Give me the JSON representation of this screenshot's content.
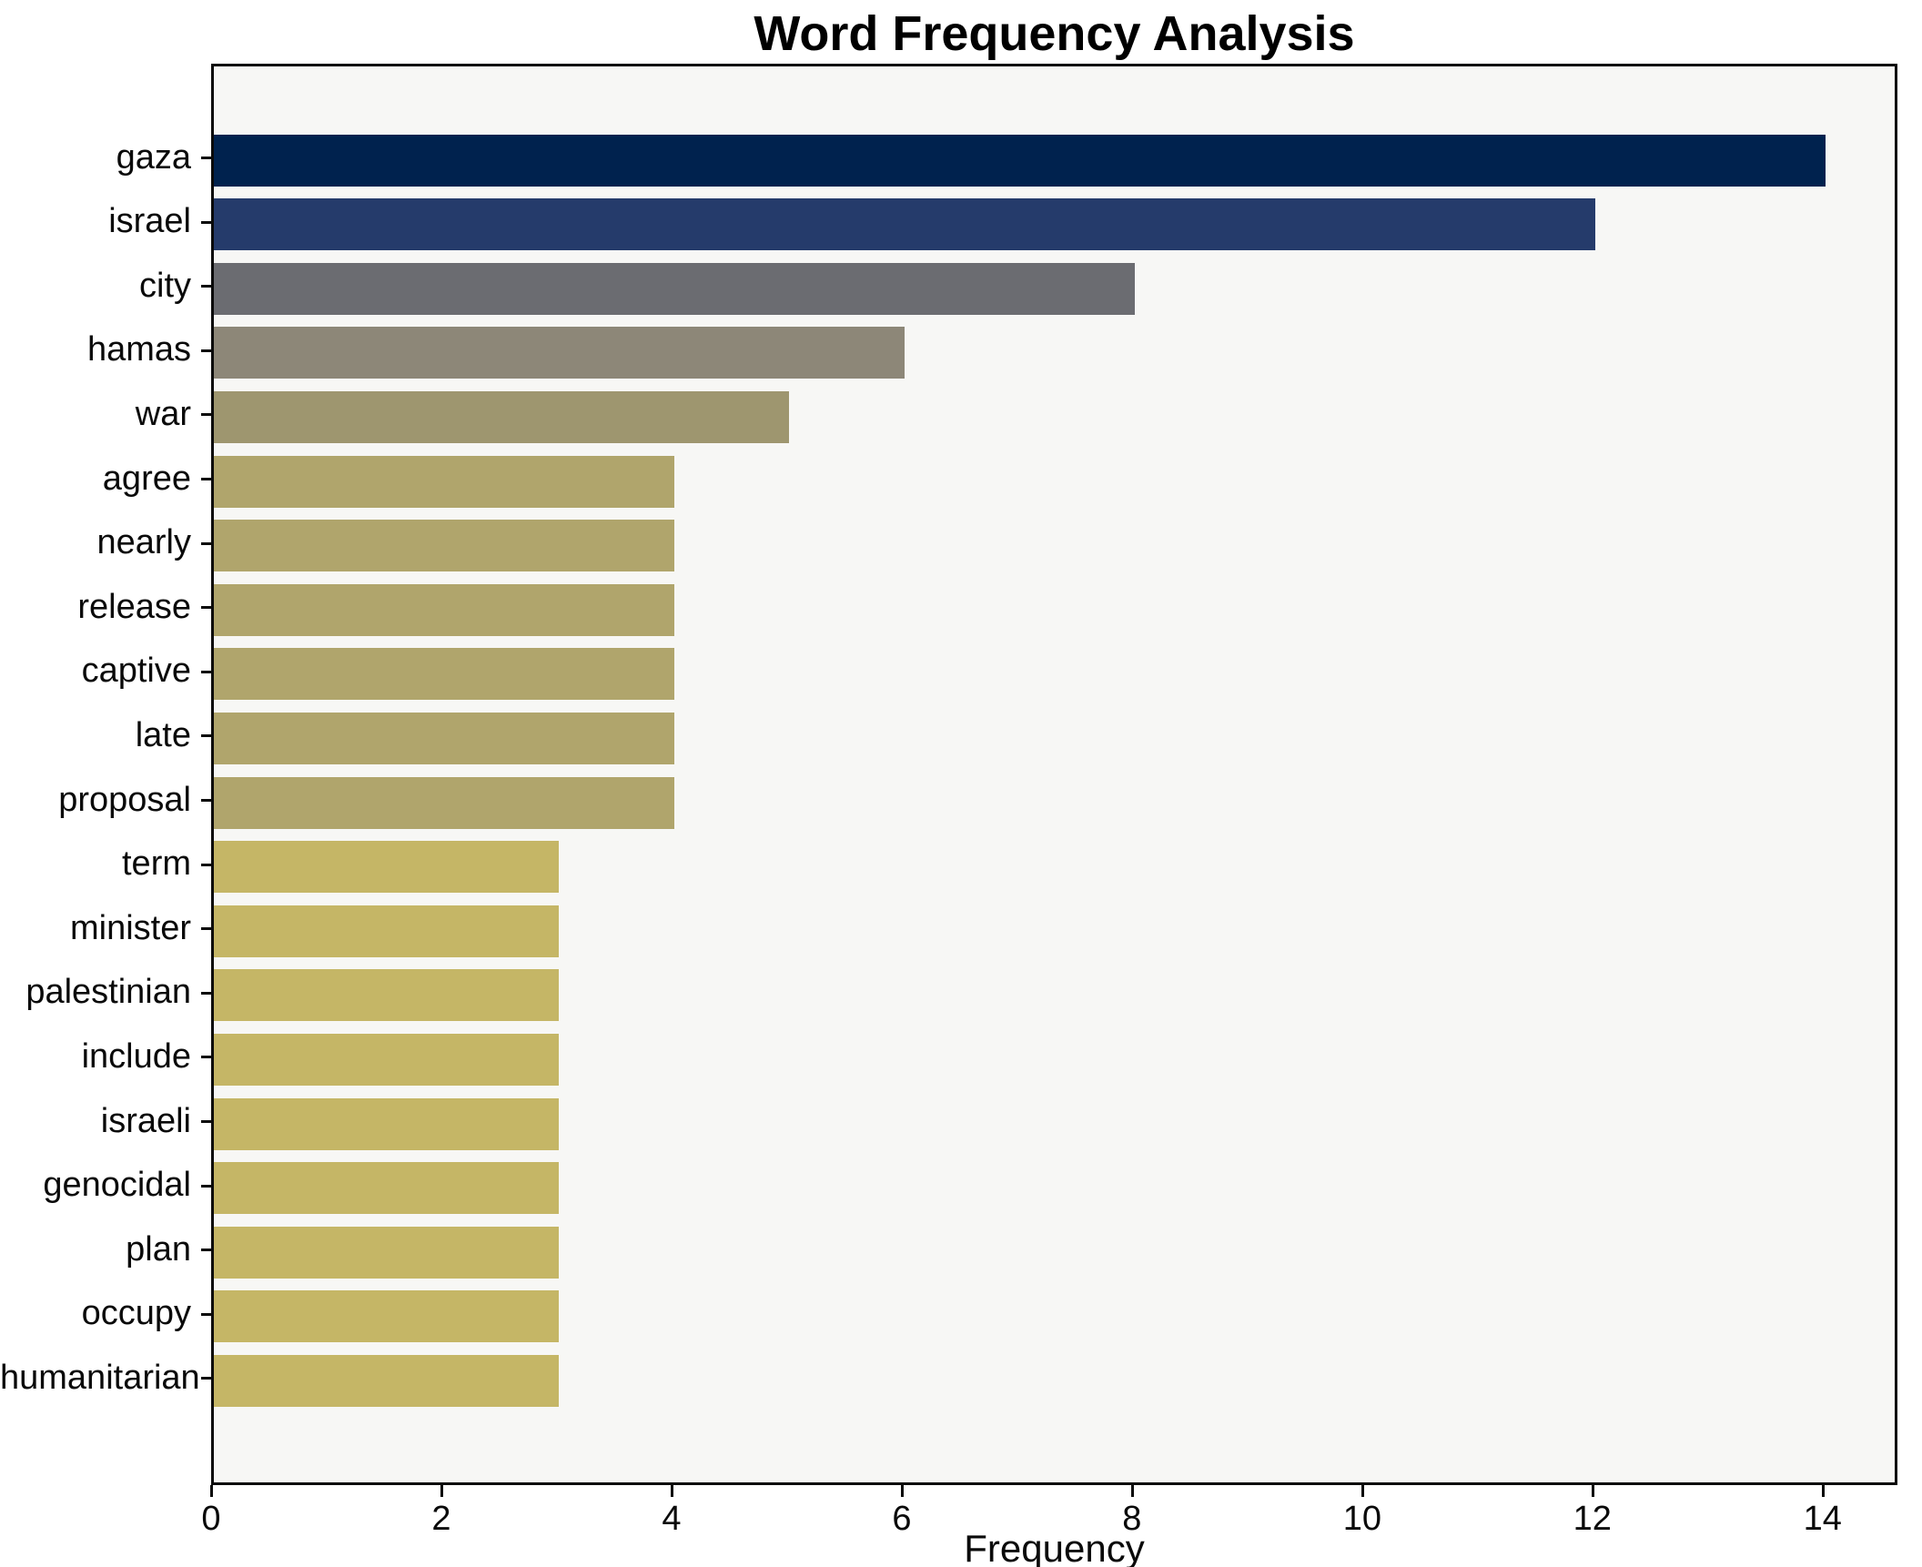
{
  "chart_data": {
    "type": "bar",
    "orientation": "horizontal",
    "title": "Word Frequency Analysis",
    "xlabel": "Frequency",
    "ylabel": "",
    "categories": [
      "gaza",
      "israel",
      "city",
      "hamas",
      "war",
      "agree",
      "nearly",
      "release",
      "captive",
      "late",
      "proposal",
      "term",
      "minister",
      "palestinian",
      "include",
      "israeli",
      "genocidal",
      "plan",
      "occupy",
      "humanitarian"
    ],
    "values": [
      14,
      12,
      8,
      6,
      5,
      4,
      4,
      4,
      4,
      4,
      4,
      3,
      3,
      3,
      3,
      3,
      3,
      3,
      3,
      3
    ],
    "bar_colors": [
      "#00224e",
      "#253b6b",
      "#6b6c71",
      "#8d8778",
      "#9e966f",
      "#b0a56c",
      "#b0a56c",
      "#b0a56c",
      "#b0a56c",
      "#b0a56c",
      "#b0a56c",
      "#c5b666",
      "#c5b666",
      "#c5b666",
      "#c5b666",
      "#c5b666",
      "#c5b666",
      "#c5b666",
      "#c5b666",
      "#c5b666"
    ],
    "xticks": [
      0,
      2,
      4,
      6,
      8,
      10,
      12,
      14
    ],
    "xlim": [
      0,
      14.65
    ],
    "grid": false,
    "legend": null,
    "plot_background": "#f7f7f5",
    "figure_background": "#ffffff",
    "colormap": "cividis"
  }
}
